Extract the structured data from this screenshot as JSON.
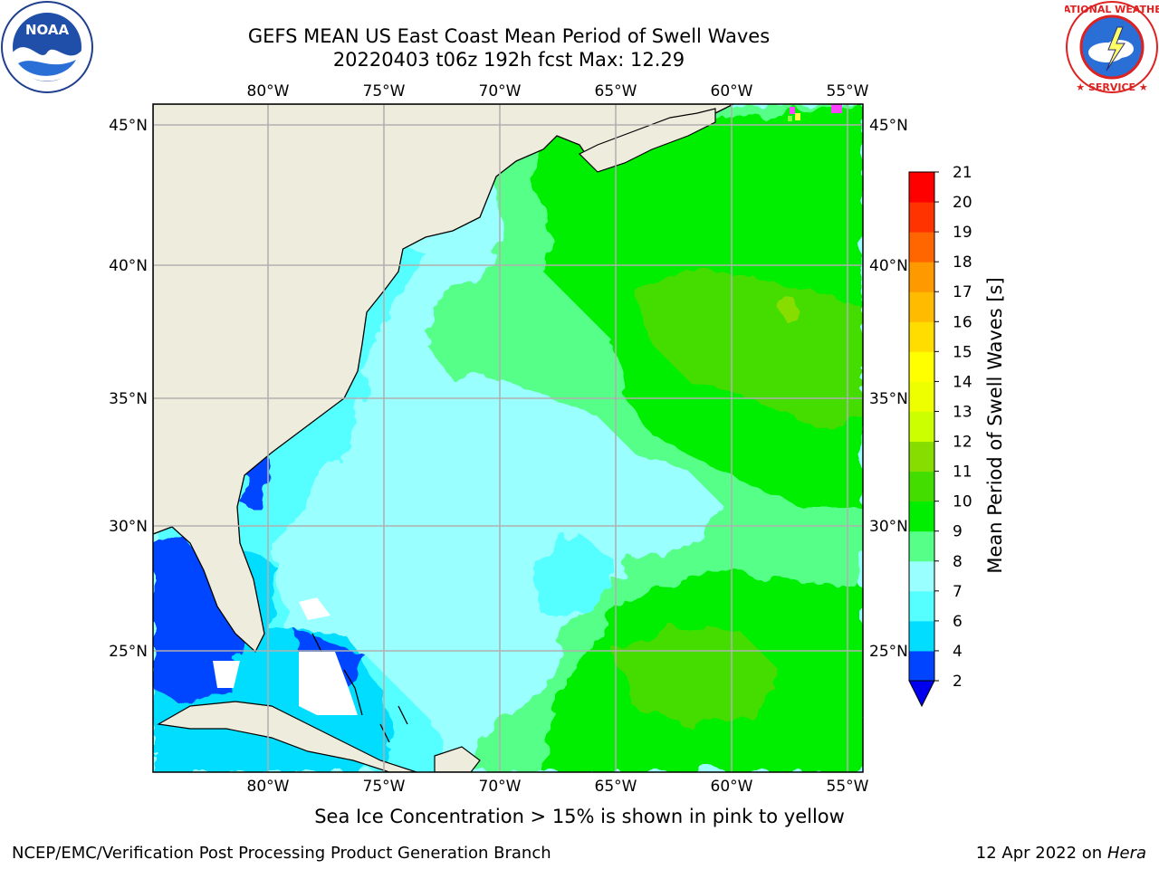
{
  "header": {
    "title_line1": "GEFS MEAN US East Coast Mean Period of Swell Waves",
    "title_line2": "20220403 t06z 192h fcst   Max: 12.29"
  },
  "logos": {
    "left": {
      "name": "noaa-logo",
      "text": "NOAA",
      "ring_text": "NATIONAL OCEANIC AND ATMOSPHERIC ADMINISTRATION · U.S. DEPARTMENT OF COMMERCE"
    },
    "right": {
      "name": "nws-logo",
      "ring_text": "NATIONAL WEATHER SERVICE"
    }
  },
  "map": {
    "lon_range": [
      -85,
      -54
    ],
    "lat_range": [
      20.5,
      46
    ],
    "lon_ticks": [
      "80°W",
      "75°W",
      "70°W",
      "65°W",
      "60°W",
      "55°W"
    ],
    "lat_ticks": [
      "45°N",
      "40°N",
      "35°N",
      "30°N",
      "25°N"
    ],
    "land_color": "#eeecdc",
    "grid_color": "#b0b0b0",
    "ice_colors": [
      "#ff44ff",
      "#ffff44",
      "#88ff44"
    ]
  },
  "colorbar": {
    "label": "Mean Period of Swell Waves [s]",
    "ticks": [
      "2",
      "4",
      "6",
      "7",
      "8",
      "9",
      "10",
      "11",
      "12",
      "13",
      "14",
      "15",
      "16",
      "17",
      "18",
      "19",
      "20",
      "21"
    ],
    "colors": [
      "#0044ff",
      "#00ddff",
      "#55ffff",
      "#99ffff",
      "#55ff88",
      "#00ee00",
      "#44dd00",
      "#88dd00",
      "#ccff00",
      "#eeff00",
      "#ffff00",
      "#ffdd00",
      "#ffbb00",
      "#ff9900",
      "#ff6600",
      "#ff3300",
      "#ff0000"
    ],
    "extend_color": "#0000ee"
  },
  "ice_note": "Sea Ice Concentration > 15% is shown in pink to yellow",
  "footer": {
    "left": "NCEP/EMC/Verification Post Processing Product Generation Branch",
    "right_date": "12 Apr 2022 on ",
    "right_host": "Hera"
  }
}
